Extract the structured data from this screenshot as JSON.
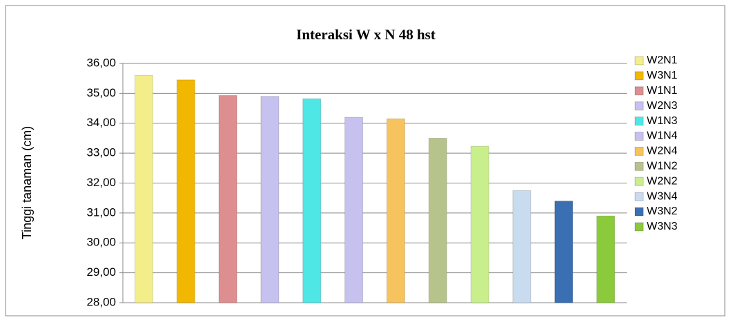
{
  "chart_data": {
    "type": "bar",
    "title": "Interaksi W x N 48 hst",
    "y_label": "Tinggi tanaman (cm)",
    "ylim": [
      28,
      36
    ],
    "yticks": [
      {
        "value": 28,
        "label": "28,00"
      },
      {
        "value": 29,
        "label": "29,00"
      },
      {
        "value": 30,
        "label": "30,00"
      },
      {
        "value": 31,
        "label": "31,00"
      },
      {
        "value": 32,
        "label": "32,00"
      },
      {
        "value": 33,
        "label": "33,00"
      },
      {
        "value": 34,
        "label": "34,00"
      },
      {
        "value": 35,
        "label": "35,00"
      },
      {
        "value": 36,
        "label": "36,00"
      }
    ],
    "grid": true,
    "legend": "right",
    "series": [
      {
        "name": "W2N1",
        "color": "#f3ee8a",
        "values": [
          35.6
        ]
      },
      {
        "name": "W3N1",
        "color": "#f2b700",
        "values": [
          35.45
        ]
      },
      {
        "name": "W1N1",
        "color": "#de8e8e",
        "values": [
          34.93
        ]
      },
      {
        "name": "W2N3",
        "color": "#c6c1ef",
        "values": [
          34.9
        ]
      },
      {
        "name": "W1N3",
        "color": "#4fe6e6",
        "values": [
          34.82
        ]
      },
      {
        "name": "W1N4",
        "color": "#c6c1ef",
        "values": [
          34.2
        ]
      },
      {
        "name": "W2N4",
        "color": "#f7c35e",
        "values": [
          34.15
        ]
      },
      {
        "name": "W1N2",
        "color": "#b6c48c",
        "values": [
          33.5
        ]
      },
      {
        "name": "W2N2",
        "color": "#c9ef8c",
        "values": [
          33.23
        ]
      },
      {
        "name": "W3N4",
        "color": "#c9dbef",
        "values": [
          31.75
        ]
      },
      {
        "name": "W3N2",
        "color": "#3b6fb4",
        "values": [
          31.4
        ]
      },
      {
        "name": "W3N3",
        "color": "#8bca3b",
        "values": [
          30.9
        ]
      }
    ]
  }
}
